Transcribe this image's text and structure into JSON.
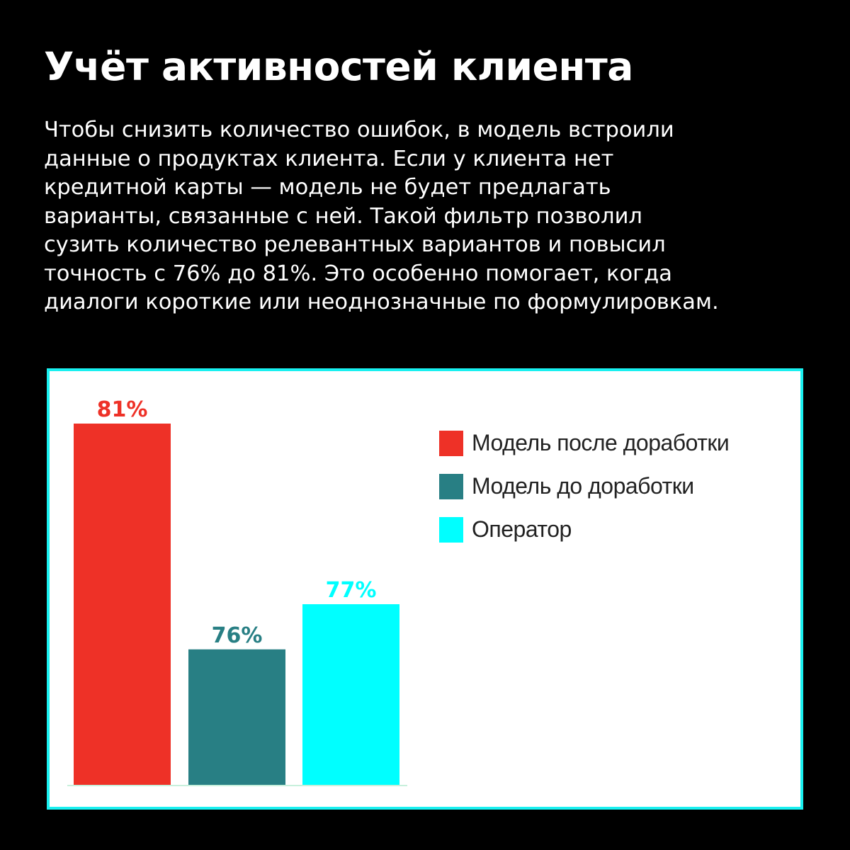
{
  "title": "Учёт активностей клиента",
  "description_lines": [
    "Чтобы снизить количество ошибок, в модель встроили",
    "данные о продуктах клиента. Если у клиента нет",
    "кредитной карты — модель не будет предлагать",
    "варианты, связанные с ней. Такой фильтр позволил",
    "сузить количество релевантных вариантов и повысил",
    "точность с 76% до 81%. Это особенно помогает, когда",
    "диалоги короткие или неоднозначные по формулировкам."
  ],
  "colors": {
    "background": "#000000",
    "frame": "#19f0f0",
    "red": "#ee3127",
    "teal": "#287f84",
    "cyan": "#00ffff"
  },
  "chart_data": {
    "type": "bar",
    "categories": [
      "Модель после доработки",
      "Модель до доработки",
      "Оператор"
    ],
    "values": [
      81,
      76,
      77
    ],
    "data_labels": [
      "81%",
      "76%",
      "77%"
    ],
    "colors": [
      "#ee3127",
      "#287f84",
      "#00ffff"
    ],
    "ylim": [
      73,
      81
    ],
    "grid": false,
    "legend": {
      "placement": "right",
      "entries": [
        "Модель после доработки",
        "Модель до доработки",
        "Оператор"
      ]
    }
  }
}
